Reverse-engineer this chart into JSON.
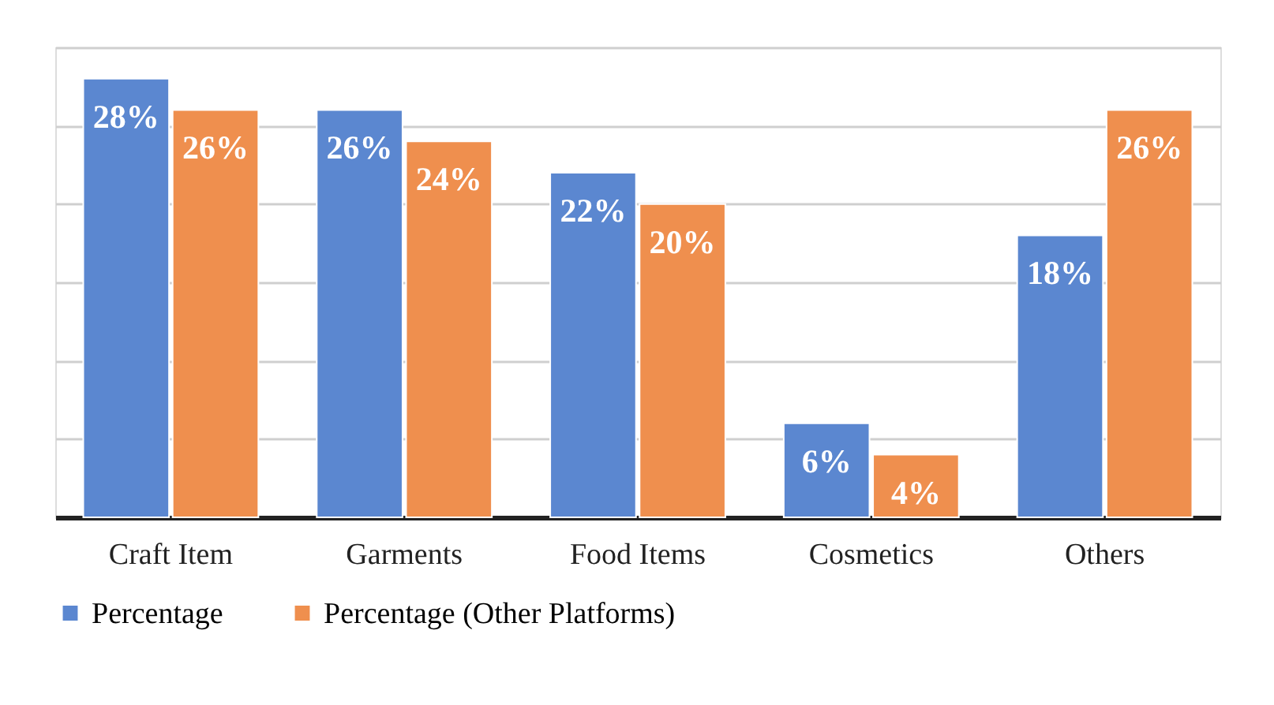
{
  "chart_data": {
    "type": "bar",
    "categories": [
      "Craft Item",
      "Garments",
      "Food Items",
      "Cosmetics",
      "Others"
    ],
    "series": [
      {
        "name": "Percentage",
        "color": "#5b87d0",
        "values": [
          28,
          26,
          22,
          6,
          18
        ],
        "value_labels": [
          "28%",
          "26%",
          "22%",
          "6%",
          "18%"
        ]
      },
      {
        "name": "Percentage (Other Platforms)",
        "color": "#ef8f4e",
        "values": [
          26,
          24,
          20,
          4,
          26
        ],
        "value_labels": [
          "26%",
          "24%",
          "20%",
          "4%",
          "26%"
        ]
      }
    ],
    "ylim": [
      0,
      30
    ],
    "yticks": [
      {
        "value": 0,
        "label": null
      },
      {
        "value": 5,
        "label": null
      },
      {
        "value": 10,
        "label": null
      },
      {
        "value": 15,
        "label": null
      },
      {
        "value": 20,
        "label": null
      },
      {
        "value": 25,
        "label": null
      },
      {
        "value": 30,
        "label": null
      }
    ],
    "grid": "y",
    "legend": "bottom",
    "tick_labels": "x"
  }
}
